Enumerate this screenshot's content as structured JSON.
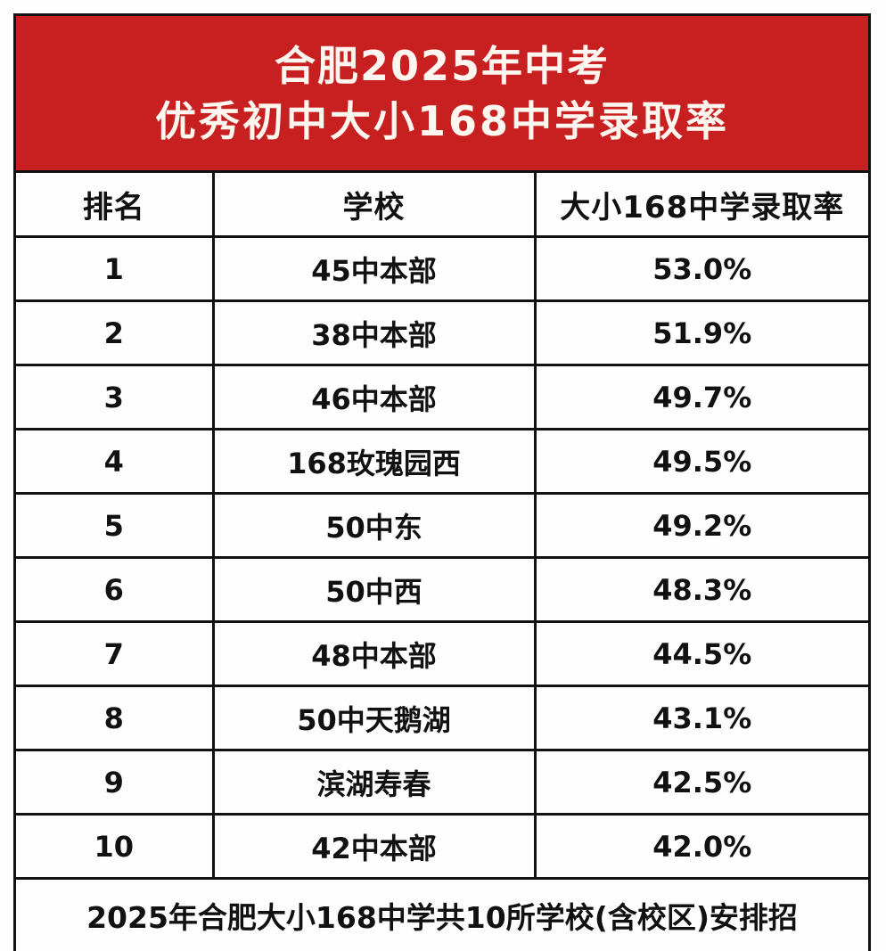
{
  "banner": {
    "line1": "合肥2025年中考",
    "line2": "优秀初中大小168中学录取率",
    "background": "#c82020",
    "text_color": "#fff6f0"
  },
  "table": {
    "headers": [
      "排名",
      "学校",
      "大小168中学录取率"
    ],
    "rows": [
      {
        "rank": "1",
        "school": "45中本部",
        "rate": "53.0%"
      },
      {
        "rank": "2",
        "school": "38中本部",
        "rate": "51.9%"
      },
      {
        "rank": "3",
        "school": "46中本部",
        "rate": "49.7%"
      },
      {
        "rank": "4",
        "school": "168玫瑰园西",
        "rate": "49.5%"
      },
      {
        "rank": "5",
        "school": "50中东",
        "rate": "49.2%"
      },
      {
        "rank": "6",
        "school": "50中西",
        "rate": "48.3%"
      },
      {
        "rank": "7",
        "school": "48中本部",
        "rate": "44.5%"
      },
      {
        "rank": "8",
        "school": "50中天鹅湖",
        "rate": "43.1%"
      },
      {
        "rank": "9",
        "school": "滨湖寿春",
        "rate": "42.5%"
      },
      {
        "rank": "10",
        "school": "42中本部",
        "rate": "42.0%"
      }
    ]
  },
  "footer": {
    "text": "2025年合肥大小168中学共10所学校(含校区)安排招"
  }
}
